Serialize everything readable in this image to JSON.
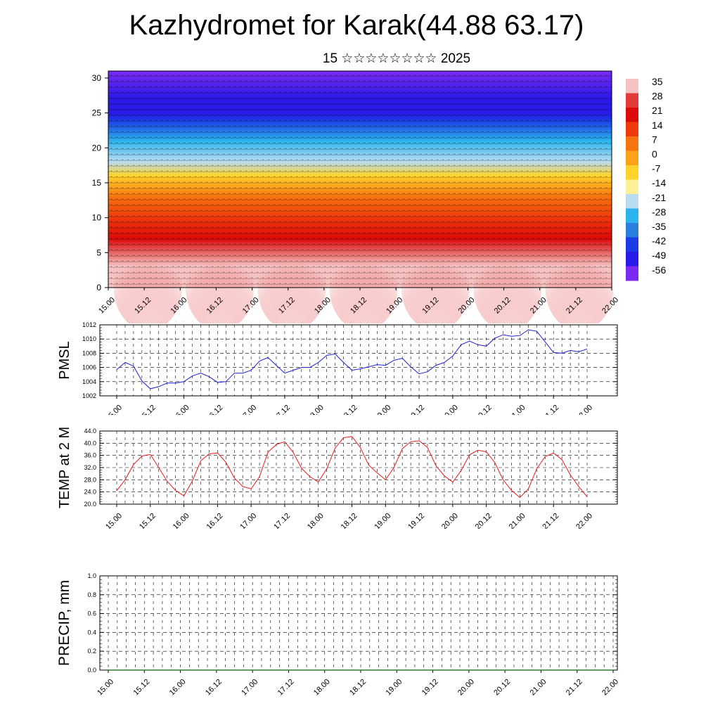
{
  "header": {
    "title": "Kazhydromet for Karak(44.88 63.17)",
    "subtitle": "15 ☆☆☆☆☆☆☆☆ 2025"
  },
  "time_ticks": [
    "15.00",
    "15.12",
    "16.00",
    "16.12",
    "17.00",
    "17.12",
    "18.00",
    "18.12",
    "19.00",
    "19.12",
    "20.00",
    "20.12",
    "21.00",
    "21.12",
    "22.00"
  ],
  "chart_data": [
    {
      "type": "heatmap",
      "name": "temperature-wind-cross-section",
      "x_tick_labels": [
        "15.00",
        "15.12",
        "16.00",
        "16.12",
        "17.00",
        "17.12",
        "18.00",
        "18.12",
        "19.00",
        "19.12",
        "20.00",
        "20.12",
        "21.00",
        "21.12",
        "22.00"
      ],
      "y_tick_labels": [
        "0",
        "5",
        "10",
        "15",
        "20",
        "25",
        "30"
      ],
      "ylim": [
        0,
        31
      ],
      "colorbar_labels": [
        "35",
        "28",
        "21",
        "14",
        "7",
        "0",
        "-7",
        "-14",
        "-21",
        "-28",
        "-35",
        "-42",
        "-49",
        "-56"
      ],
      "colorbar_colors": [
        "#f6c2c2",
        "#e33a3a",
        "#dc0a0a",
        "#ee3a0a",
        "#f7730f",
        "#fba21a",
        "#ffd42a",
        "#fff096",
        "#b8dcf0",
        "#2cb4ee",
        "#2a7ede",
        "#1c3ae6",
        "#2a1ae8",
        "#7a2af2"
      ],
      "vertical_profile": [
        {
          "level": 0,
          "temp": 32
        },
        {
          "level": 3,
          "temp": 31
        },
        {
          "level": 7,
          "temp": 25
        },
        {
          "level": 10,
          "temp": 17
        },
        {
          "level": 13,
          "temp": 5
        },
        {
          "level": 16,
          "temp": -10
        },
        {
          "level": 18,
          "temp": -18
        },
        {
          "level": 21,
          "temp": -30
        },
        {
          "level": 24,
          "temp": -48
        },
        {
          "level": 25,
          "temp": -56
        },
        {
          "level": 27,
          "temp": -55
        },
        {
          "level": 31,
          "temp": -60
        }
      ],
      "wind_vectors": "shown (light barbs at every grid point)"
    },
    {
      "type": "line",
      "name": "PMSL",
      "ylabel": "PMSL",
      "ylim": [
        1002,
        1012
      ],
      "y_tick_labels": [
        "1012",
        "1010",
        "1008",
        "1006",
        "1004",
        "1002"
      ],
      "x_tick_labels": [
        "15.00",
        "15.12",
        "16.00",
        "16.12",
        "17.00",
        "17.12",
        "18.00",
        "18.12",
        "19.00",
        "19.12",
        "20.00",
        "20.12",
        "21.00",
        "21.12",
        "22.00"
      ],
      "step_hours": 3,
      "series_color": "#1f1fd8",
      "values": [
        1005.7,
        1006.7,
        1006.2,
        1004.1,
        1003.0,
        1003.3,
        1003.8,
        1003.8,
        1004.0,
        1004.8,
        1005.2,
        1004.7,
        1003.9,
        1004.0,
        1005.2,
        1005.2,
        1005.6,
        1006.9,
        1007.4,
        1006.3,
        1005.2,
        1005.6,
        1006.0,
        1006.0,
        1006.7,
        1007.7,
        1007.9,
        1006.7,
        1005.6,
        1005.8,
        1006.1,
        1006.4,
        1006.3,
        1007.0,
        1007.3,
        1006.1,
        1005.1,
        1005.4,
        1006.3,
        1006.7,
        1007.6,
        1009.2,
        1009.7,
        1009.2,
        1009.0,
        1010.1,
        1010.6,
        1010.4,
        1010.5,
        1011.3,
        1011.1,
        1009.6,
        1008.1,
        1008.0,
        1008.4,
        1008.2,
        1008.6
      ]
    },
    {
      "type": "line",
      "name": "TEMP at 2 M",
      "ylabel": "TEMP at 2 M",
      "ylim": [
        20,
        44
      ],
      "y_tick_labels": [
        "44.0",
        "40.0",
        "36.0",
        "32.0",
        "28.0",
        "24.0",
        "20.0"
      ],
      "x_tick_labels": [
        "15.00",
        "15.12",
        "16.00",
        "16.12",
        "17.00",
        "17.12",
        "18.00",
        "18.12",
        "19.00",
        "19.12",
        "20.00",
        "20.12",
        "21.00",
        "21.12",
        "22.00"
      ],
      "step_hours": 3,
      "series_color": "#e81c1c",
      "values": [
        24.4,
        28.0,
        33.0,
        35.8,
        36.3,
        32.0,
        27.5,
        24.5,
        22.7,
        27.6,
        34.2,
        36.5,
        36.8,
        33.7,
        28.6,
        25.8,
        25.0,
        29.0,
        37.0,
        39.6,
        40.5,
        37.0,
        31.8,
        29.0,
        27.3,
        31.6,
        38.4,
        41.8,
        42.2,
        38.6,
        32.8,
        30.3,
        28.0,
        32.0,
        38.2,
        40.5,
        40.8,
        38.6,
        32.6,
        29.3,
        27.2,
        31.0,
        36.2,
        37.7,
        37.2,
        33.7,
        28.0,
        24.5,
        22.2,
        25.0,
        31.6,
        35.6,
        36.8,
        34.6,
        29.6,
        25.8,
        22.4
      ]
    },
    {
      "type": "line",
      "name": "PRECIP, mm",
      "ylabel": "PRECIP, mm",
      "ylim": [
        0.0,
        1.0
      ],
      "y_tick_labels": [
        "1.0",
        "0.8",
        "0.6",
        "0.4",
        "0.2",
        "0.0"
      ],
      "x_tick_labels": [
        "15.00",
        "15.12",
        "16.00",
        "16.12",
        "17.00",
        "17.12",
        "18.00",
        "18.12",
        "19.00",
        "19.12",
        "20.00",
        "20.12",
        "21.00",
        "21.12",
        "22.00"
      ],
      "step_hours": 3,
      "series_color": "#2e7d32",
      "values": [
        0,
        0,
        0,
        0,
        0,
        0,
        0,
        0,
        0,
        0,
        0,
        0,
        0,
        0,
        0,
        0,
        0,
        0,
        0,
        0,
        0,
        0,
        0,
        0,
        0,
        0,
        0,
        0,
        0,
        0,
        0,
        0,
        0,
        0,
        0,
        0,
        0,
        0,
        0,
        0,
        0,
        0,
        0,
        0,
        0,
        0,
        0,
        0,
        0,
        0,
        0,
        0,
        0,
        0,
        0,
        0,
        0
      ]
    }
  ]
}
